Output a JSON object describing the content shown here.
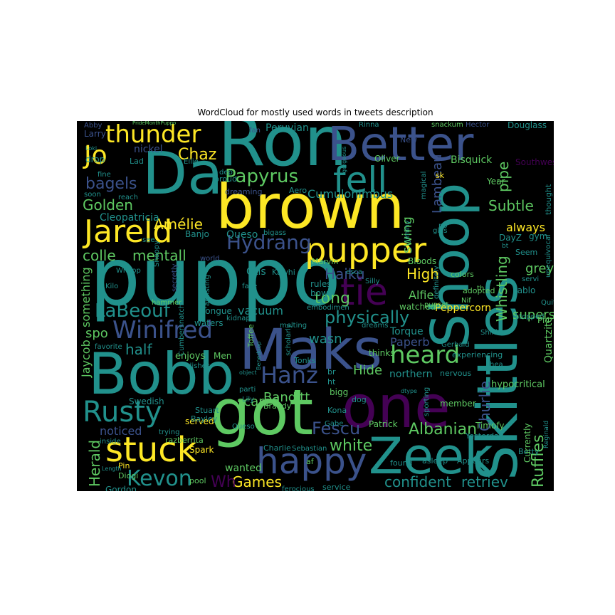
{
  "chart_data": {
    "type": "wordcloud",
    "title": "WordCloud for mostly used words in tweets description",
    "background": "#000000",
    "palette": [
      "#fde725",
      "#5ec962",
      "#21918c",
      "#3b528b",
      "#440154"
    ],
    "words": [
      {
        "text": "puppo",
        "color": "#21918c"
      },
      {
        "text": "Ron",
        "color": "#21918c"
      },
      {
        "text": "Da",
        "color": "#21918c"
      },
      {
        "text": "Better",
        "color": "#3b528b"
      },
      {
        "text": "brown",
        "color": "#fde725"
      },
      {
        "text": "Shoop",
        "color": "#21918c"
      },
      {
        "text": "Skittles",
        "color": "#21918c"
      },
      {
        "text": "Maks",
        "color": "#3b528b"
      },
      {
        "text": "Bobb",
        "color": "#21918c"
      },
      {
        "text": "one",
        "color": "#440154"
      },
      {
        "text": "got",
        "color": "#5ec962"
      },
      {
        "text": "Zeek",
        "color": "#21918c"
      },
      {
        "text": "stuck",
        "color": "#fde725"
      },
      {
        "text": "happy",
        "color": "#3b528b"
      },
      {
        "text": "Jareld",
        "color": "#fde725"
      },
      {
        "text": "pupper",
        "color": "#fde725"
      },
      {
        "text": "tie",
        "color": "#440154"
      },
      {
        "text": "Rusty",
        "color": "#21918c"
      },
      {
        "text": "fell",
        "color": "#21918c"
      },
      {
        "text": "thunder",
        "color": "#fde725"
      },
      {
        "text": "Jo",
        "color": "#fde725"
      },
      {
        "text": "Winifred",
        "color": "#3b528b"
      },
      {
        "text": "heard",
        "color": "#5ec962"
      },
      {
        "text": "Hanz",
        "color": "#3b528b"
      },
      {
        "text": "Papyrus",
        "color": "#5ec962"
      },
      {
        "text": "Hydrang",
        "color": "#3b528b"
      },
      {
        "text": "physically",
        "color": "#21918c"
      },
      {
        "text": "Kevon",
        "color": "#21918c"
      },
      {
        "text": "LaBeouf",
        "color": "#21918c"
      },
      {
        "text": "Albanian",
        "color": "#5ec962"
      },
      {
        "text": "Fescu",
        "color": "#3b528b"
      },
      {
        "text": "confident",
        "color": "#21918c"
      },
      {
        "text": "retriev",
        "color": "#21918c"
      },
      {
        "text": "Chaz",
        "color": "#fde725"
      },
      {
        "text": "mentall",
        "color": "#5ec962"
      },
      {
        "text": "colle",
        "color": "#5ec962"
      },
      {
        "text": "bagels",
        "color": "#3b528b"
      },
      {
        "text": "Golden",
        "color": "#5ec962"
      },
      {
        "text": "Subtle",
        "color": "#5ec962"
      },
      {
        "text": "Haiku",
        "color": "#3b528b"
      },
      {
        "text": "High",
        "color": "#fde725"
      },
      {
        "text": "Banditt",
        "color": "#5ec962"
      },
      {
        "text": "Games",
        "color": "#fde725"
      },
      {
        "text": "white",
        "color": "#5ec962"
      },
      {
        "text": "Ruffles",
        "color": "#5ec962"
      },
      {
        "text": "Whistling",
        "color": "#5ec962"
      },
      {
        "text": "Churlie",
        "color": "#3b528b"
      },
      {
        "text": "Lambeau",
        "color": "#3b528b"
      },
      {
        "text": "tong",
        "color": "#5ec962"
      },
      {
        "text": "swing",
        "color": "#5ec962"
      },
      {
        "text": "pipe",
        "color": "#5ec962"
      },
      {
        "text": "Amélie",
        "color": "#fde725"
      },
      {
        "text": "Cumulonimbus",
        "color": "#21918c"
      },
      {
        "text": "Cleopatricia",
        "color": "#21918c"
      },
      {
        "text": "half",
        "color": "#21918c"
      },
      {
        "text": "spo",
        "color": "#5ec962"
      },
      {
        "text": "vacuum",
        "color": "#21918c"
      },
      {
        "text": "wasn",
        "color": "#21918c"
      },
      {
        "text": "Alfie",
        "color": "#5ec962"
      },
      {
        "text": "supers",
        "color": "#5ec962"
      },
      {
        "text": "Hide",
        "color": "#5ec962"
      },
      {
        "text": "northern",
        "color": "#21918c"
      },
      {
        "text": "scared",
        "color": "#5ec962"
      },
      {
        "text": "Herald",
        "color": "#5ec962"
      },
      {
        "text": "Wh",
        "color": "#440154"
      },
      {
        "text": "wanted",
        "color": "#5ec962"
      },
      {
        "text": "noticed",
        "color": "#3b528b"
      },
      {
        "text": "Jaycob",
        "color": "#5ec962"
      },
      {
        "text": "something",
        "color": "#5ec962"
      },
      {
        "text": "Torque",
        "color": "#21918c"
      },
      {
        "text": "Paperb",
        "color": "#3b528b"
      },
      {
        "text": "grey",
        "color": "#5ec962"
      },
      {
        "text": "always",
        "color": "#fde725"
      },
      {
        "text": "Quartzite",
        "color": "#5ec962"
      },
      {
        "text": "Peruvian",
        "color": "#21918c"
      },
      {
        "text": "Douglass",
        "color": "#21918c"
      },
      {
        "text": "Bisquick",
        "color": "#5ec962"
      },
      {
        "text": "Oliver",
        "color": "#5ec962"
      },
      {
        "text": "nickel",
        "color": "#3b528b"
      },
      {
        "text": "Larry",
        "color": "#3b528b"
      },
      {
        "text": "Lad",
        "color": "#21918c"
      },
      {
        "text": "drop",
        "color": "#21918c"
      },
      {
        "text": "Southwest",
        "color": "#440154"
      },
      {
        "text": "Year",
        "color": "#5ec962"
      },
      {
        "text": "Queso",
        "color": "#21918c"
      },
      {
        "text": "Banjo",
        "color": "#21918c"
      },
      {
        "text": "Otis",
        "color": "#21918c"
      },
      {
        "text": "Kawhi",
        "color": "#21918c"
      },
      {
        "text": "Marvin",
        "color": "#5ec962"
      },
      {
        "text": "Bloods",
        "color": "#5ec962"
      },
      {
        "text": "rules",
        "color": "#21918c"
      },
      {
        "text": "bow",
        "color": "#21918c"
      },
      {
        "text": "watched",
        "color": "#5ec962"
      },
      {
        "text": "Peppercorn",
        "color": "#fde725"
      },
      {
        "text": "adopted",
        "color": "#5ec962"
      },
      {
        "text": "colors",
        "color": "#5ec962"
      },
      {
        "text": "Pablo",
        "color": "#21918c"
      },
      {
        "text": "Seem",
        "color": "#21918c"
      },
      {
        "text": "gym",
        "color": "#21918c"
      },
      {
        "text": "DayZ",
        "color": "#21918c"
      },
      {
        "text": "waters",
        "color": "#21918c"
      },
      {
        "text": "Tongue",
        "color": "#21918c"
      },
      {
        "text": "enjoys",
        "color": "#5ec962"
      },
      {
        "text": "Men",
        "color": "#5ec962"
      },
      {
        "text": "Toffee",
        "color": "#5ec962"
      },
      {
        "text": "Tonks",
        "color": "#21918c"
      },
      {
        "text": "thinks",
        "color": "#5ec962"
      },
      {
        "text": "hypocritical",
        "color": "#5ec962"
      },
      {
        "text": "Shikha",
        "color": "#21918c"
      },
      {
        "text": "Gerbald",
        "color": "#21918c"
      },
      {
        "text": "experiencing",
        "color": "#21918c"
      },
      {
        "text": "nervous",
        "color": "#21918c"
      },
      {
        "text": "Swedish",
        "color": "#21918c"
      },
      {
        "text": "served",
        "color": "#fde725"
      },
      {
        "text": "Stuart",
        "color": "#21918c"
      },
      {
        "text": "Bayley",
        "color": "#21918c"
      },
      {
        "text": "Spark",
        "color": "#fde725"
      },
      {
        "text": "razberrita",
        "color": "#5ec962"
      },
      {
        "text": "Brandy",
        "color": "#5ec962"
      },
      {
        "text": "dog",
        "color": "#21918c"
      },
      {
        "text": "Kona",
        "color": "#21918c"
      },
      {
        "text": "Gabe",
        "color": "#21918c"
      },
      {
        "text": "Patrick",
        "color": "#5ec962"
      },
      {
        "text": "member",
        "color": "#5ec962"
      },
      {
        "text": "Timofy",
        "color": "#5ec962"
      },
      {
        "text": "Yesterday",
        "color": "#21918c"
      },
      {
        "text": "Betty",
        "color": "#21918c"
      },
      {
        "text": "Appears",
        "color": "#21918c"
      },
      {
        "text": "asleep",
        "color": "#21918c"
      },
      {
        "text": "found",
        "color": "#21918c"
      },
      {
        "text": "Charlie",
        "color": "#21918c"
      },
      {
        "text": "Sebastian",
        "color": "#21918c"
      },
      {
        "text": "Gordon",
        "color": "#21918c"
      },
      {
        "text": "Pin",
        "color": "#fde725"
      },
      {
        "text": "Diogi",
        "color": "#5ec962"
      },
      {
        "text": "pool",
        "color": "#5ec962"
      },
      {
        "text": "service",
        "color": "#21918c"
      },
      {
        "text": "ferocious",
        "color": "#21918c"
      },
      {
        "text": "Hector",
        "color": "#3b528b"
      },
      {
        "text": "snackum",
        "color": "#5ec962"
      },
      {
        "text": "Rinna",
        "color": "#21918c"
      },
      {
        "text": "New",
        "color": "#3b528b"
      },
      {
        "text": "Ellie",
        "color": "#21918c"
      },
      {
        "text": "fine",
        "color": "#21918c"
      },
      {
        "text": "soon",
        "color": "#21918c"
      },
      {
        "text": "reach",
        "color": "#21918c"
      },
      {
        "text": "proud",
        "color": "#21918c"
      },
      {
        "text": "dep",
        "color": "#21918c"
      },
      {
        "text": "Aero",
        "color": "#21918c"
      },
      {
        "text": "dreaming",
        "color": "#3b528b"
      },
      {
        "text": "bigass",
        "color": "#21918c"
      },
      {
        "text": "see",
        "color": "#21918c"
      },
      {
        "text": "world",
        "color": "#3b528b"
      },
      {
        "text": "Whoop",
        "color": "#21918c"
      },
      {
        "text": "Snoopy",
        "color": "#21918c"
      },
      {
        "text": "Kilo",
        "color": "#21918c"
      },
      {
        "text": "secretly",
        "color": "#3b528b"
      },
      {
        "text": "hammer",
        "color": "#5ec962"
      },
      {
        "text": "favorite",
        "color": "#21918c"
      },
      {
        "text": "Cumbersnatch",
        "color": "#21918c"
      },
      {
        "text": "assisting",
        "color": "#21918c"
      },
      {
        "text": "face",
        "color": "#21918c"
      },
      {
        "text": "kidnap",
        "color": "#21918c"
      },
      {
        "text": "dishes",
        "color": "#21918c"
      },
      {
        "text": "melting",
        "color": "#21918c"
      },
      {
        "text": "scholarly",
        "color": "#21918c"
      },
      {
        "text": "embodimen",
        "color": "#21918c"
      },
      {
        "text": "dreams",
        "color": "#21918c"
      },
      {
        "text": "esca",
        "color": "#21918c"
      },
      {
        "text": "pupset",
        "color": "#5ec962"
      },
      {
        "text": "Silly",
        "color": "#21918c"
      },
      {
        "text": "Jiminy",
        "color": "#21918c"
      },
      {
        "text": "magical",
        "color": "#21918c"
      },
      {
        "text": "glas",
        "color": "#21918c"
      },
      {
        "text": "definitely",
        "color": "#21918c"
      },
      {
        "text": "po",
        "color": "#21918c"
      },
      {
        "text": "thought",
        "color": "#21918c"
      },
      {
        "text": "unequivocal",
        "color": "#21918c"
      },
      {
        "text": "stopped",
        "color": "#21918c"
      },
      {
        "text": "Quite",
        "color": "#21918c"
      },
      {
        "text": "servi",
        "color": "#21918c"
      },
      {
        "text": "th",
        "color": "#5ec962"
      },
      {
        "text": "Pic",
        "color": "#5ec962"
      },
      {
        "text": "hea",
        "color": "#21918c"
      },
      {
        "text": "Currently",
        "color": "#5ec962"
      },
      {
        "text": "Reginald",
        "color": "#21918c"
      },
      {
        "text": "sporting",
        "color": "#21918c"
      },
      {
        "text": "dtype",
        "color": "#21918c"
      },
      {
        "text": "bigg",
        "color": "#5ec962"
      },
      {
        "text": "af",
        "color": "#5ec962"
      },
      {
        "text": "ht",
        "color": "#21918c"
      },
      {
        "text": "br",
        "color": "#21918c"
      },
      {
        "text": "Queso",
        "color": "#21918c"
      },
      {
        "text": "inside",
        "color": "#21918c"
      },
      {
        "text": "trying",
        "color": "#21918c"
      },
      {
        "text": "parti",
        "color": "#21918c"
      },
      {
        "text": "Lily",
        "color": "#21918c"
      },
      {
        "text": "object",
        "color": "#21918c"
      },
      {
        "text": "Length",
        "color": "#21918c"
      },
      {
        "text": "Abby",
        "color": "#3b528b"
      },
      {
        "text": "Loki",
        "color": "#21918c"
      },
      {
        "text": "PrideMonthPuppo",
        "color": "#5ec962"
      },
      {
        "text": "fan",
        "color": "#3b528b"
      },
      {
        "text": "gorgeous",
        "color": "#21918c"
      },
      {
        "text": "sk",
        "color": "#fde725"
      },
      {
        "text": "Benedoop",
        "color": "#21918c"
      },
      {
        "text": "tasss",
        "color": "#21918c"
      },
      {
        "text": "Nif",
        "color": "#5ec962"
      },
      {
        "text": "bt",
        "color": "#21918c"
      }
    ]
  }
}
